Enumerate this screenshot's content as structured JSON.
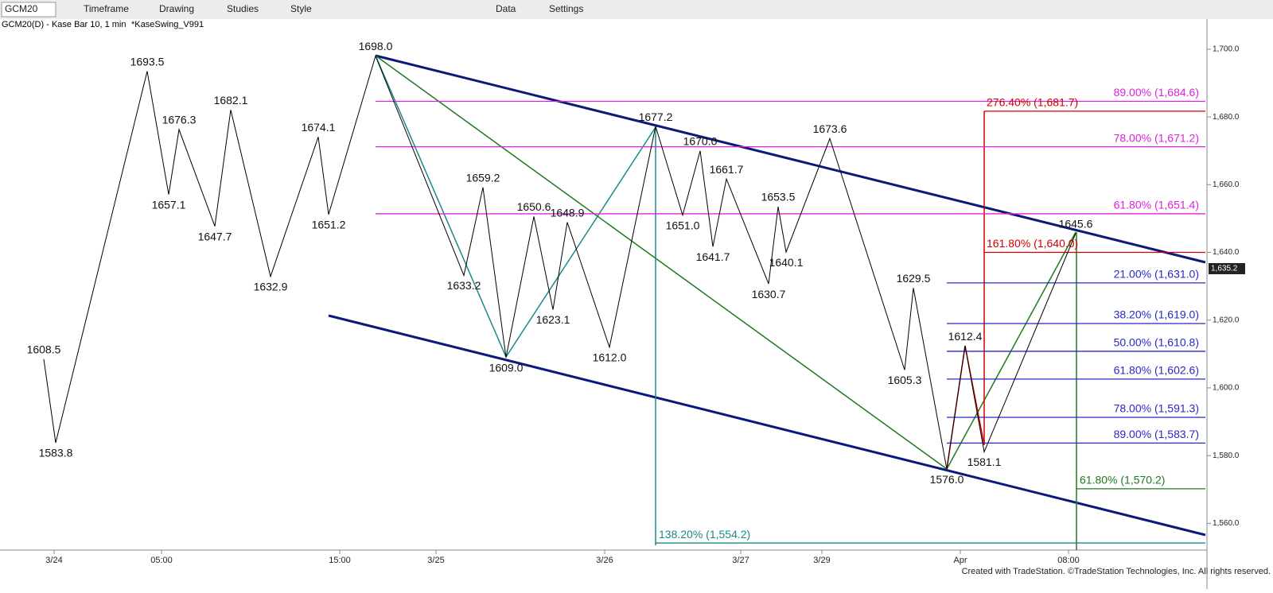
{
  "toolbar": {
    "symbol": "GCM20",
    "items": [
      "Timeframe",
      "Drawing",
      "Studies",
      "Style",
      "Data",
      "Settings"
    ]
  },
  "footer": "Created with TradeStation. ©TradeStation Technologies, Inc. All rights reserved.",
  "chart_data": {
    "type": "line",
    "title": "GCM20(D) - Kase Bar 10, 1 min",
    "subtitle": "*KaseSwing_V991",
    "color": "#000000",
    "ylim": [
      1552.1,
      1708.9
    ],
    "yticks": [
      {
        "value": 1700,
        "label": "1,700.0"
      },
      {
        "value": 1680,
        "label": "1,680.0"
      },
      {
        "value": 1660,
        "label": "1,660.0"
      },
      {
        "value": 1640,
        "label": "1,640.0"
      },
      {
        "value": 1620,
        "label": "1,620.0"
      },
      {
        "value": 1600,
        "label": "1,600.0"
      },
      {
        "value": 1580,
        "label": "1,580.0"
      },
      {
        "value": 1560,
        "label": "1,560.0"
      }
    ],
    "x_labels": [
      "3/24",
      "05:00",
      "15:00",
      "3/25",
      "3/26",
      "3/27",
      "3/29",
      "Apr",
      "08:00"
    ],
    "swings": [
      {
        "value": 1608.5,
        "label": "1608.5"
      },
      {
        "value": 1583.8,
        "label": "1583.8"
      },
      {
        "value": 1693.5,
        "label": "1693.5"
      },
      {
        "value": 1657.1,
        "label": "1657.1"
      },
      {
        "value": 1676.3,
        "label": "1676.3"
      },
      {
        "value": 1647.7,
        "label": "1647.7"
      },
      {
        "value": 1682.1,
        "label": "1682.1"
      },
      {
        "value": 1632.9,
        "label": "1632.9"
      },
      {
        "value": 1674.1,
        "label": "1674.1"
      },
      {
        "value": 1651.2,
        "label": "1651.2"
      },
      {
        "value": 1698.0,
        "label": "1698.0"
      },
      {
        "value": 1633.2,
        "label": "1633.2"
      },
      {
        "value": 1659.2,
        "label": "1659.2"
      },
      {
        "value": 1609.0,
        "label": "1609.0"
      },
      {
        "value": 1650.6,
        "label": "1650.6"
      },
      {
        "value": 1623.1,
        "label": "1623.1"
      },
      {
        "value": 1648.9,
        "label": "1648.9"
      },
      {
        "value": 1612.0,
        "label": "1612.0"
      },
      {
        "value": 1677.2,
        "label": "1677.2"
      },
      {
        "value": 1651.0,
        "label": "1651.0"
      },
      {
        "value": 1670.0,
        "label": "1670.0"
      },
      {
        "value": 1641.7,
        "label": "1641.7"
      },
      {
        "value": 1661.7,
        "label": "1661.7"
      },
      {
        "value": 1630.7,
        "label": "1630.7"
      },
      {
        "value": 1653.5,
        "label": "1653.5"
      },
      {
        "value": 1640.1,
        "label": "1640.1"
      },
      {
        "value": 1673.6,
        "label": "1673.6"
      },
      {
        "value": 1605.3,
        "label": "1605.3"
      },
      {
        "value": 1629.5,
        "label": "1629.5"
      },
      {
        "value": 1576.0,
        "label": "1576.0"
      },
      {
        "value": 1612.4,
        "label": "1612.4"
      },
      {
        "value": 1581.1,
        "label": "1581.1"
      },
      {
        "value": 1645.6,
        "label": "1645.6"
      }
    ],
    "levels": [
      {
        "value": 1684.6,
        "label": "89.00% (1,684.6)",
        "color": "#e020e0"
      },
      {
        "value": 1671.2,
        "label": "78.00% (1,671.2)",
        "color": "#e020e0"
      },
      {
        "value": 1651.4,
        "label": "61.80% (1,651.4)",
        "color": "#e020e0"
      },
      {
        "value": 1631.0,
        "label": "21.00% (1,631.0)",
        "color": "#2828c8"
      },
      {
        "value": 1619.0,
        "label": "38.20% (1,619.0)",
        "color": "#2828c8"
      },
      {
        "value": 1610.8,
        "label": "50.00% (1,610.8)",
        "color": "#2828c8"
      },
      {
        "value": 1602.6,
        "label": "61.80% (1,602.6)",
        "color": "#2828c8"
      },
      {
        "value": 1591.3,
        "label": "78.00% (1,591.3)",
        "color": "#2828c8"
      },
      {
        "value": 1583.7,
        "label": "89.00% (1,583.7)",
        "color": "#2828c8"
      },
      {
        "value": 1681.7,
        "label": "276.40% (1,681.7)",
        "color": "#d00000"
      },
      {
        "value": 1640.0,
        "label": "161.80% (1,640.0)",
        "color": "#d00000"
      },
      {
        "value": 1570.2,
        "label": "61.80% (1,570.2)",
        "color": "#1e7a1e"
      },
      {
        "value": 1554.2,
        "label": "138.20% (1,554.2)",
        "color": "#1a8a8a"
      }
    ],
    "last_price": {
      "value": 1635.2,
      "label": "1,635.2"
    }
  }
}
